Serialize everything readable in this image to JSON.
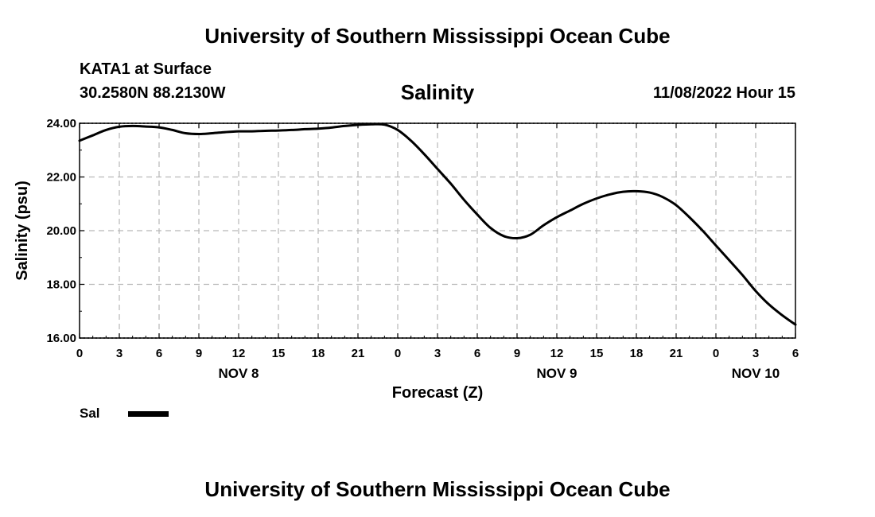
{
  "header": {
    "title": "University of Southern Mississippi Ocean Cube"
  },
  "station": {
    "name": "KATA1 at Surface",
    "coords": "30.2580N  88.2130W"
  },
  "footer": {
    "title": "University of Southern Mississippi Ocean Cube"
  },
  "chart_data": {
    "type": "line",
    "title": "Salinity",
    "timestamp": "11/08/2022 Hour 15",
    "xlabel": "Forecast (Z)",
    "ylabel": "Salinity (psu)",
    "x_unit": "forecast hour",
    "xlim": [
      0,
      54
    ],
    "ylim": [
      16,
      24
    ],
    "grid": true,
    "y_ticks": [
      "16.00",
      "18.00",
      "20.00",
      "22.00",
      "24.00"
    ],
    "y_tick_values": [
      16,
      18,
      20,
      22,
      24
    ],
    "x_ticks": [
      {
        "x": 0,
        "label": "0"
      },
      {
        "x": 3,
        "label": "3"
      },
      {
        "x": 6,
        "label": "6"
      },
      {
        "x": 9,
        "label": "9"
      },
      {
        "x": 12,
        "label": "12"
      },
      {
        "x": 15,
        "label": "15"
      },
      {
        "x": 18,
        "label": "18"
      },
      {
        "x": 21,
        "label": "21"
      },
      {
        "x": 24,
        "label": "0"
      },
      {
        "x": 27,
        "label": "3"
      },
      {
        "x": 30,
        "label": "6"
      },
      {
        "x": 33,
        "label": "9"
      },
      {
        "x": 36,
        "label": "12"
      },
      {
        "x": 39,
        "label": "15"
      },
      {
        "x": 42,
        "label": "18"
      },
      {
        "x": 45,
        "label": "21"
      },
      {
        "x": 48,
        "label": "0"
      },
      {
        "x": 51,
        "label": "3"
      },
      {
        "x": 54,
        "label": "6"
      }
    ],
    "day_labels": [
      {
        "x": 12,
        "label": "NOV 8"
      },
      {
        "x": 36,
        "label": "NOV 9"
      },
      {
        "x": 51,
        "label": "NOV 10"
      }
    ],
    "legend": {
      "label": "Sal",
      "placement": "bottom-left"
    },
    "series": [
      {
        "name": "Sal",
        "color": "#000000",
        "x": [
          0,
          1,
          2,
          3,
          4,
          5,
          6,
          7,
          8,
          9,
          10,
          11,
          12,
          13,
          14,
          15,
          16,
          17,
          18,
          19,
          20,
          21,
          22,
          23,
          24,
          25,
          26,
          27,
          28,
          29,
          30,
          31,
          32,
          33,
          34,
          35,
          36,
          37,
          38,
          39,
          40,
          41,
          42,
          43,
          44,
          45,
          46,
          47,
          48,
          49,
          50,
          51,
          52,
          53,
          54
        ],
        "values": [
          23.35,
          23.55,
          23.75,
          23.87,
          23.9,
          23.88,
          23.85,
          23.75,
          23.63,
          23.6,
          23.63,
          23.67,
          23.7,
          23.7,
          23.72,
          23.73,
          23.75,
          23.78,
          23.8,
          23.84,
          23.9,
          23.94,
          23.96,
          23.95,
          23.75,
          23.35,
          22.85,
          22.3,
          21.75,
          21.15,
          20.6,
          20.1,
          19.8,
          19.72,
          19.85,
          20.2,
          20.5,
          20.75,
          21.0,
          21.2,
          21.35,
          21.45,
          21.47,
          21.42,
          21.25,
          20.95,
          20.5,
          20.0,
          19.45,
          18.9,
          18.35,
          17.75,
          17.25,
          16.85,
          16.5
        ]
      }
    ]
  }
}
